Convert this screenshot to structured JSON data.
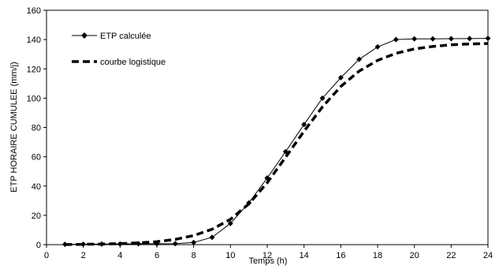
{
  "chart_data": {
    "type": "line",
    "xlabel": "Temps (h)",
    "ylabel": "ETP HORAIRE CUMULEE (mm/j)",
    "xlim": [
      0,
      24
    ],
    "ylim": [
      0,
      160
    ],
    "xticks": [
      0,
      2,
      4,
      6,
      8,
      10,
      12,
      14,
      16,
      18,
      20,
      22,
      24
    ],
    "yticks": [
      0,
      20,
      40,
      60,
      80,
      100,
      120,
      140,
      160
    ],
    "grid": false,
    "legend_position": "top-left",
    "series": [
      {
        "name": "ETP calculée",
        "style": "solid line with diamond markers",
        "color": "#000000",
        "x": [
          1,
          2,
          3,
          4,
          5,
          6,
          7,
          8,
          9,
          10,
          11,
          12,
          13,
          14,
          15,
          16,
          17,
          18,
          19,
          20,
          21,
          22,
          23,
          24
        ],
        "y": [
          0.2,
          0.3,
          0.4,
          0.5,
          0.6,
          0.6,
          0.7,
          1.5,
          5,
          14.5,
          28.5,
          45.5,
          63.5,
          82,
          100,
          114,
          126.5,
          135,
          140,
          140.5,
          140.5,
          140.6,
          140.7,
          140.8
        ]
      },
      {
        "name": "courbe logistique",
        "style": "dashed line",
        "color": "#000000",
        "x": [
          1,
          2,
          3,
          4,
          5,
          6,
          7,
          8,
          9,
          10,
          11,
          12,
          13,
          14,
          15,
          16,
          17,
          18,
          19,
          20,
          21,
          22,
          23,
          24
        ],
        "y": [
          0.1,
          0.2,
          0.4,
          0.7,
          1.2,
          2,
          3.6,
          6.2,
          10.5,
          17.3,
          27.8,
          42.3,
          59.7,
          77.4,
          94,
          108,
          118.5,
          125.8,
          130.6,
          133.6,
          135.3,
          136.4,
          137,
          137.3
        ]
      }
    ]
  }
}
